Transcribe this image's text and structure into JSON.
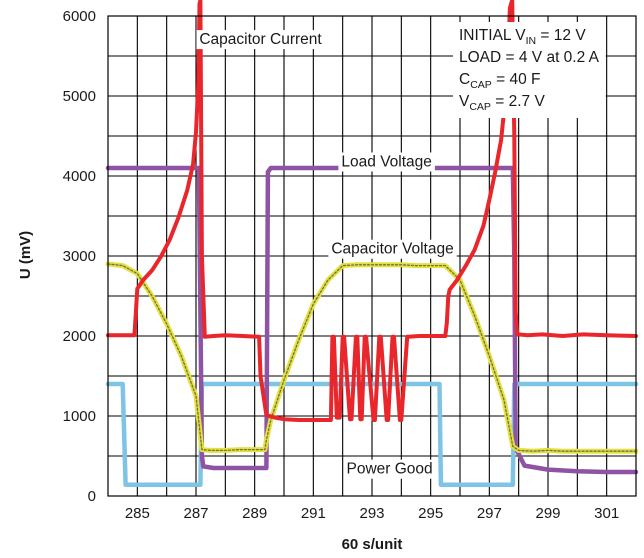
{
  "chart_data": {
    "type": "line",
    "xlabel": "60 s/unit",
    "ylabel": "U (mV)",
    "xlim": [
      284,
      302
    ],
    "ylim": [
      0,
      6000
    ],
    "x_ticks": [
      285,
      287,
      289,
      291,
      293,
      295,
      297,
      299,
      301
    ],
    "y_ticks": [
      0,
      1000,
      2000,
      3000,
      4000,
      5000,
      6000
    ],
    "grid": true,
    "colors": {
      "capacitor_current": "#e8262b",
      "load_voltage": "#8e54a3",
      "capacitor_voltage": "#e4e23a",
      "capacitor_voltage_core": "#6f6f55",
      "power_good": "#7fc4e4",
      "grid": "#000000"
    },
    "conditions": {
      "line1_pre": "INITIAL V",
      "line1_sub": "IN",
      "line1_post": " = 12 V",
      "line2": "LOAD = 4 V at 0.2 A",
      "line3_pre": "C",
      "line3_sub": "CAP",
      "line3_post": " = 40 F",
      "line4_pre": "V",
      "line4_sub": "CAP",
      "line4_post": " = 2.7 V"
    },
    "series": [
      {
        "name": "Capacitor Current",
        "label_at": [
          289.2,
          5700
        ],
        "x": [
          284.0,
          284.9,
          284.95,
          285.0,
          285.2,
          285.5,
          285.8,
          286.1,
          286.4,
          286.7,
          286.9,
          287.0,
          287.08,
          287.12,
          287.15,
          287.2,
          287.3,
          287.6,
          288.0,
          288.6,
          289.15,
          289.2,
          289.4,
          289.7,
          290.0,
          290.5,
          291.0,
          291.6,
          291.65,
          291.7,
          291.8,
          291.9,
          292.0,
          292.05,
          292.25,
          292.3,
          292.45,
          292.5,
          292.6,
          292.65,
          292.75,
          292.8,
          293.05,
          293.1,
          293.25,
          293.3,
          293.5,
          293.55,
          293.7,
          293.75,
          293.95,
          294.0,
          294.2,
          294.25,
          294.6,
          294.65,
          295.5,
          295.55,
          295.6,
          295.65,
          295.9,
          296.2,
          296.5,
          296.8,
          297.0,
          297.2,
          297.4,
          297.6,
          297.7,
          297.78,
          297.85,
          297.9,
          297.95,
          298.0,
          298.3,
          298.8,
          299.5,
          300.2,
          301.0,
          302.0
        ],
        "y": [
          2010,
          2010,
          2300,
          2590,
          2700,
          2820,
          2990,
          3200,
          3480,
          3820,
          4150,
          4550,
          5150,
          6150,
          6200,
          3000,
          1990,
          2000,
          2010,
          2000,
          1990,
          1500,
          1010,
          980,
          960,
          950,
          950,
          950,
          1990,
          1990,
          980,
          980,
          1990,
          1990,
          960,
          960,
          1990,
          1990,
          960,
          960,
          1990,
          1990,
          950,
          950,
          1990,
          1990,
          950,
          950,
          1990,
          1990,
          950,
          950,
          1990,
          1990,
          2000,
          2000,
          2000,
          2160,
          2500,
          2580,
          2700,
          2880,
          3080,
          3380,
          3700,
          4050,
          4450,
          5150,
          6100,
          6200,
          4500,
          2300,
          2020,
          2020,
          2010,
          2020,
          2000,
          2020,
          2010,
          2000
        ]
      },
      {
        "name": "Load Voltage",
        "label_at": [
          293.5,
          4170
        ],
        "x": [
          284.0,
          287.1,
          287.2,
          287.25,
          287.6,
          288.5,
          289.4,
          289.45,
          289.55,
          290.0,
          292.0,
          294.0,
          296.0,
          297.8,
          297.85,
          297.9,
          298.2,
          299.0,
          300.0,
          301.0,
          302.0
        ],
        "y": [
          4100,
          4100,
          500,
          370,
          350,
          350,
          350,
          4050,
          4100,
          4100,
          4100,
          4100,
          4100,
          4100,
          3000,
          600,
          380,
          330,
          310,
          300,
          300
        ]
      },
      {
        "name": "Capacitor Voltage",
        "label_at": [
          293.7,
          3080
        ],
        "x": [
          284.0,
          284.5,
          285.0,
          285.5,
          286.0,
          286.5,
          287.0,
          287.2,
          287.5,
          288.0,
          288.5,
          289.0,
          289.35,
          289.4,
          289.55,
          290.0,
          290.5,
          291.0,
          291.5,
          292.0,
          292.5,
          293.0,
          293.5,
          294.0,
          294.5,
          295.0,
          295.5,
          296.0,
          296.5,
          297.0,
          297.5,
          297.8,
          298.0,
          298.5,
          299.0,
          299.5,
          300.0,
          300.5,
          301.0,
          301.5,
          302.0
        ],
        "y": [
          2900,
          2880,
          2780,
          2500,
          2150,
          1750,
          1250,
          580,
          570,
          570,
          580,
          580,
          580,
          700,
          950,
          1450,
          1950,
          2400,
          2700,
          2880,
          2890,
          2890,
          2890,
          2890,
          2880,
          2880,
          2880,
          2700,
          2250,
          1750,
          1200,
          620,
          570,
          560,
          570,
          560,
          560,
          560,
          560,
          560,
          560
        ]
      },
      {
        "name": "Power Good",
        "label_at": [
          293.6,
          330
        ],
        "x": [
          284.0,
          284.5,
          284.6,
          286.5,
          287.15,
          287.2,
          288.0,
          290.0,
          292.0,
          294.0,
          295.3,
          295.35,
          296.0,
          297.0,
          297.8,
          297.85,
          299.0,
          300.0,
          301.0,
          302.0
        ],
        "y": [
          1400,
          1400,
          140,
          140,
          140,
          1400,
          1400,
          1400,
          1400,
          1400,
          1400,
          140,
          140,
          140,
          140,
          1400,
          1400,
          1400,
          1400,
          1400
        ]
      }
    ]
  }
}
